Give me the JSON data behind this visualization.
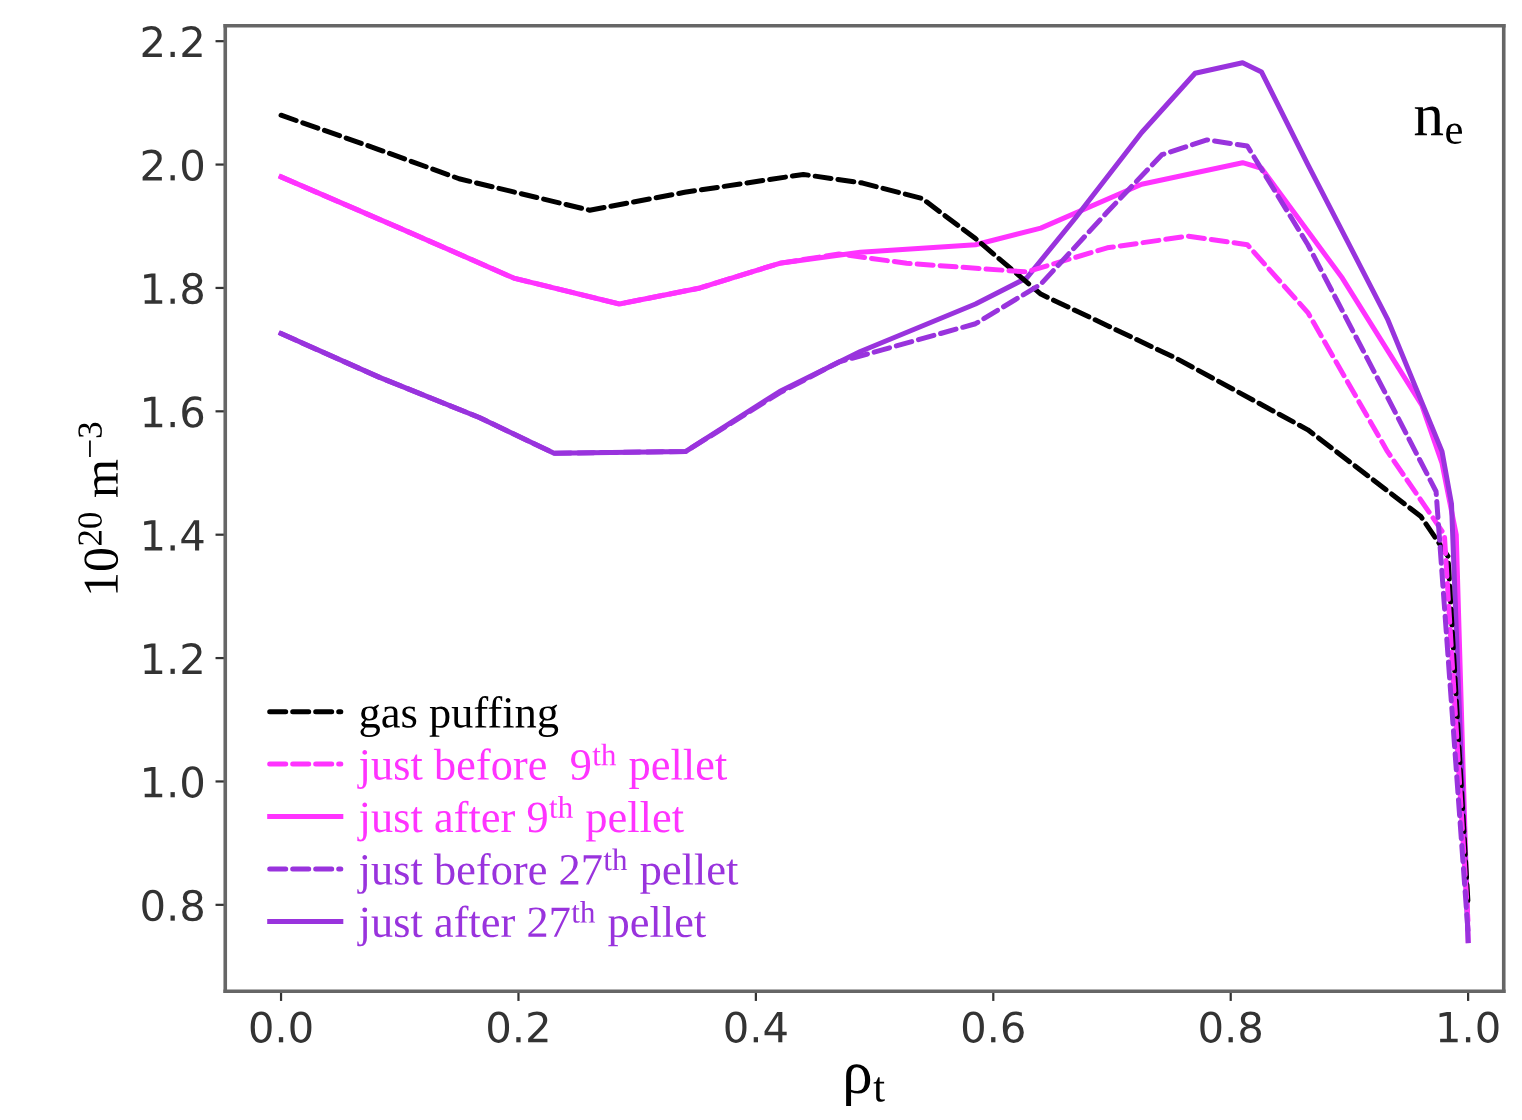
{
  "chart_data": {
    "type": "line",
    "xlabel": "ρ$_{t}$",
    "ylabel": "10$^{20}$ m$^{−3}$",
    "annotations": [
      "n$_{e}$"
    ],
    "xlim": [
      -0.047,
      1.03
    ],
    "ylim": [
      0.66,
      2.225
    ],
    "xticks": [
      {
        "value": 0,
        "label": "0.0"
      },
      {
        "value": 0.2,
        "label": "0.2"
      },
      {
        "value": 0.4,
        "label": "0.4"
      },
      {
        "value": 0.6,
        "label": "0.6"
      },
      {
        "value": 0.8,
        "label": "0.8"
      },
      {
        "value": 1,
        "label": "1.0"
      }
    ],
    "yticks": [
      {
        "value": 0.8,
        "label": "0.8"
      },
      {
        "value": 1,
        "label": "1.0"
      },
      {
        "value": 1.2,
        "label": "1.2"
      },
      {
        "value": 1.4,
        "label": "1.4"
      },
      {
        "value": 1.6,
        "label": "1.6"
      },
      {
        "value": 1.8,
        "label": "1.8"
      },
      {
        "value": 2,
        "label": "2.0"
      },
      {
        "value": 2.2,
        "label": "2.2"
      }
    ],
    "grid": false,
    "legend": "bottom left",
    "marker": "none",
    "series": [
      {
        "name": "gas puffing",
        "color": "#000000",
        "line_style": "dashed",
        "x": [
          0,
          0.08,
          0.15,
          0.26,
          0.34,
          0.44,
          0.49,
          0.54,
          0.585,
          0.64,
          0.753,
          0.865,
          0.96,
          0.983,
          1.0
        ],
        "values": [
          2.08,
          2.026,
          1.977,
          1.926,
          1.955,
          1.984,
          1.97,
          1.945,
          1.88,
          1.79,
          1.687,
          1.57,
          1.43,
          1.365,
          0.8
        ]
      },
      {
        "name": "just before  9$^{th}$ pellet",
        "color": "#ff33ff",
        "line_style": "dashed",
        "x": [
          0,
          0.1,
          0.196,
          0.285,
          0.353,
          0.42,
          0.47,
          0.527,
          0.628,
          0.696,
          0.764,
          0.814,
          0.865,
          0.932,
          0.973,
          0.98,
          1.0
        ],
        "values": [
          1.98,
          1.897,
          1.816,
          1.774,
          1.8,
          1.84,
          1.855,
          1.84,
          1.826,
          1.865,
          1.884,
          1.87,
          1.76,
          1.535,
          1.42,
          1.4,
          0.77
        ]
      },
      {
        "name": "just after 9$^{th}$ pellet",
        "color": "#ff33ff",
        "line_style": "solid",
        "x": [
          0,
          0.1,
          0.196,
          0.285,
          0.353,
          0.42,
          0.488,
          0.585,
          0.64,
          0.725,
          0.81,
          0.826,
          0.894,
          0.961,
          0.978,
          0.99,
          1.0
        ],
        "values": [
          1.98,
          1.897,
          1.816,
          1.774,
          1.8,
          1.84,
          1.858,
          1.87,
          1.897,
          1.968,
          2.003,
          1.994,
          1.816,
          1.61,
          1.516,
          1.4,
          0.742
        ]
      },
      {
        "name": "just before 27$^{th}$ pellet",
        "color": "#9933dd",
        "line_style": "dashed",
        "x": [
          0,
          0.083,
          0.167,
          0.23,
          0.341,
          0.42,
          0.47,
          0.585,
          0.64,
          0.696,
          0.742,
          0.78,
          0.814,
          0.865,
          0.932,
          0.973,
          1.0
        ],
        "values": [
          1.726,
          1.655,
          1.59,
          1.532,
          1.535,
          1.63,
          1.68,
          1.742,
          1.806,
          1.923,
          2.016,
          2.04,
          2.03,
          1.87,
          1.623,
          1.47,
          0.755
        ]
      },
      {
        "name": "just after 27$^{th}$ pellet",
        "color": "#9933dd",
        "line_style": "solid",
        "x": [
          0,
          0.083,
          0.167,
          0.23,
          0.341,
          0.42,
          0.488,
          0.585,
          0.628,
          0.669,
          0.725,
          0.77,
          0.81,
          0.826,
          0.865,
          0.932,
          0.978,
          0.986,
          1.0
        ],
        "values": [
          1.726,
          1.655,
          1.59,
          1.532,
          1.535,
          1.632,
          1.697,
          1.774,
          1.816,
          1.913,
          2.052,
          2.148,
          2.165,
          2.15,
          2.0,
          1.75,
          1.535,
          1.45,
          0.742
        ]
      }
    ]
  }
}
